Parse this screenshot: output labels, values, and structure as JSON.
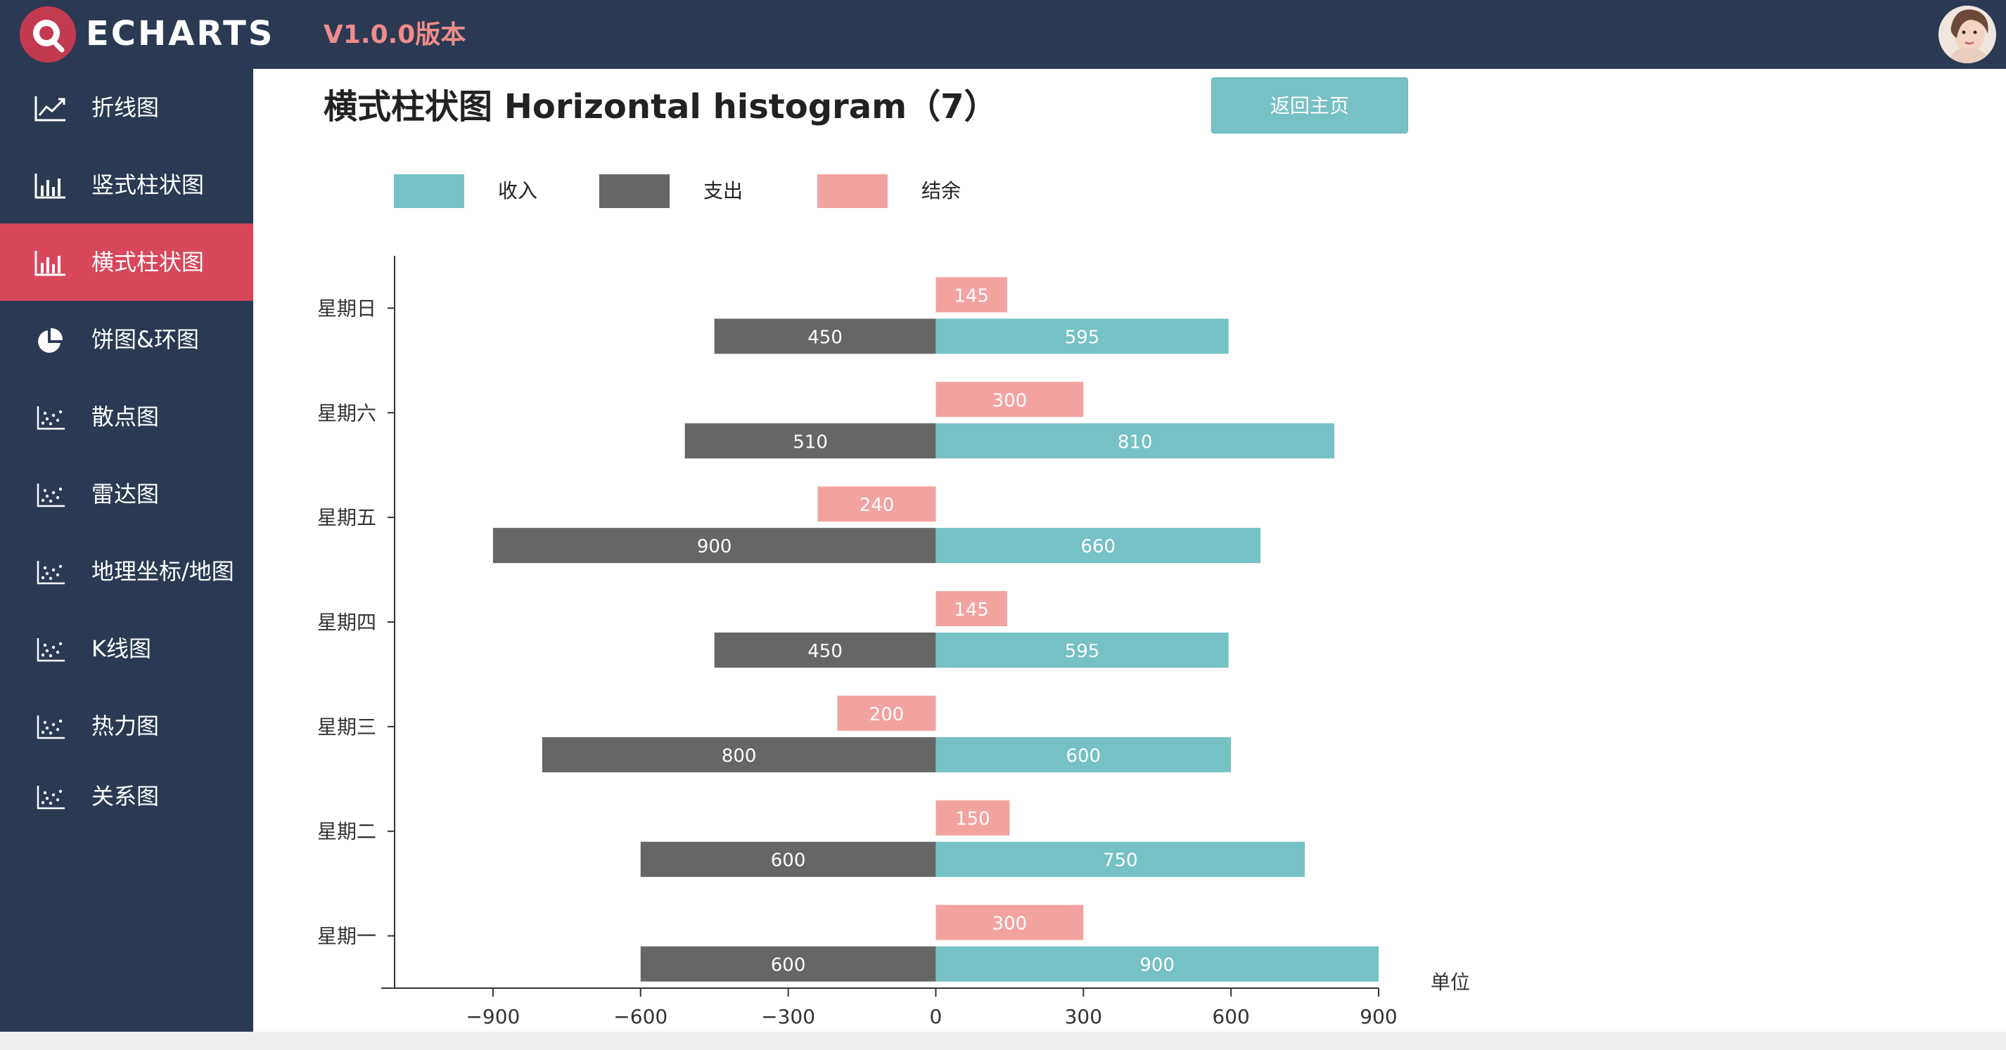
{
  "header": {
    "logo_text": "ECHARTS",
    "version": "V1.0.0版本",
    "colors": {
      "background": "#2b3a52",
      "logo_red": "#c23a4f",
      "version": "#f08c8c"
    }
  },
  "sidebar": {
    "items": [
      {
        "label": "折线图",
        "icon": "line-chart-icon"
      },
      {
        "label": "竖式柱状图",
        "icon": "bar-chart-icon"
      },
      {
        "label": "横式柱状图",
        "icon": "bar-chart-icon",
        "active": true
      },
      {
        "label": "饼图&环图",
        "icon": "pie-chart-icon"
      },
      {
        "label": "散点图",
        "icon": "scatter-chart-icon"
      },
      {
        "label": "雷达图",
        "icon": "scatter-chart-icon"
      },
      {
        "label": "地理坐标/地图",
        "icon": "scatter-chart-icon"
      },
      {
        "label": "K线图",
        "icon": "scatter-chart-icon"
      },
      {
        "label": "热力图",
        "icon": "scatter-chart-icon"
      },
      {
        "label": "关系图",
        "icon": "scatter-chart-icon"
      }
    ],
    "colors": {
      "background": "#2b3a52",
      "active": "#d9475a"
    }
  },
  "main": {
    "title": "横式柱状图 Horizontal histogram（7）",
    "home_button": "返回主页"
  },
  "chart_data": {
    "type": "bar",
    "orientation": "horizontal",
    "categories": [
      "星期一",
      "星期二",
      "星期三",
      "星期四",
      "星期五",
      "星期六",
      "星期日"
    ],
    "series": [
      {
        "name": "收入",
        "color": "#76c1c4",
        "values": [
          900,
          750,
          600,
          595,
          660,
          810,
          595
        ]
      },
      {
        "name": "支出",
        "color": "#666666",
        "values": [
          -600,
          -600,
          -800,
          -450,
          -900,
          -510,
          -450
        ],
        "labels": [
          600,
          600,
          800,
          450,
          900,
          510,
          450
        ]
      },
      {
        "name": "结余",
        "color": "#f2a3a0",
        "values": [
          300,
          150,
          -200,
          145,
          -240,
          300,
          145
        ]
      }
    ],
    "xlim": [
      -1100,
      900
    ],
    "xticks": [
      -900,
      -600,
      -300,
      0,
      300,
      600,
      900
    ],
    "xtick_labels": [
      "−900",
      "−600",
      "−300",
      "0",
      "300",
      "600",
      "900"
    ],
    "xlabel": "单位",
    "legend": "top-left",
    "grid": false
  }
}
